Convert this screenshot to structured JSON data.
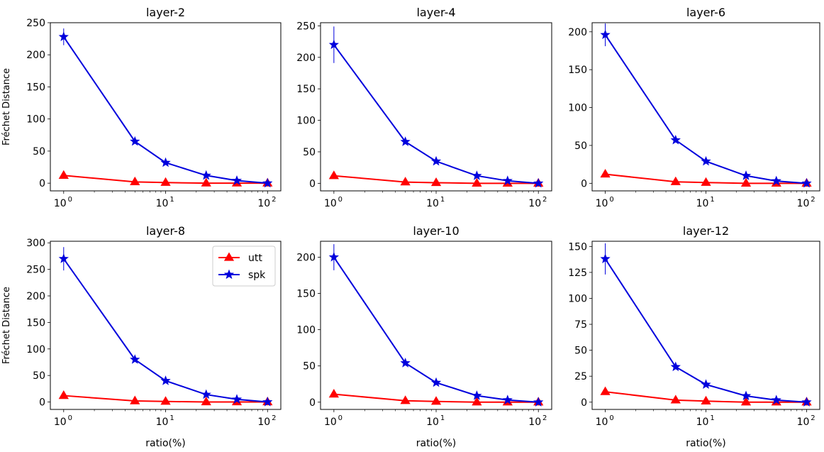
{
  "figure": {
    "colors": {
      "utt": "#ff0000",
      "spk": "#0000dd"
    }
  },
  "chart_data": [
    {
      "type": "line",
      "title": "layer-2",
      "x": [
        1,
        5,
        10,
        25,
        50,
        100
      ],
      "xscale": "log",
      "xlim": [
        0.74,
        135
      ],
      "xticks": [
        1,
        10,
        100
      ],
      "xticklabels": [
        "10",
        "10",
        "10"
      ],
      "xtick_exponents": [
        "0",
        "1",
        "2"
      ],
      "xlabel": "",
      "ylabel": "Fréchet Distance",
      "ylim": [
        -12,
        250
      ],
      "yticks": [
        0,
        50,
        100,
        150,
        200,
        250
      ],
      "series": [
        {
          "name": "utt",
          "marker": "triangle",
          "values": [
            12,
            2,
            1,
            0,
            0,
            0
          ],
          "err": [
            0,
            0,
            0,
            0,
            0,
            0
          ]
        },
        {
          "name": "spk",
          "marker": "star",
          "values": [
            228,
            65,
            32,
            12,
            4,
            0
          ],
          "err": [
            13,
            0,
            0,
            0,
            0,
            0
          ]
        }
      ]
    },
    {
      "type": "line",
      "title": "layer-4",
      "x": [
        1,
        5,
        10,
        25,
        50,
        100
      ],
      "xscale": "log",
      "xlim": [
        0.74,
        135
      ],
      "xticks": [
        1,
        10,
        100
      ],
      "xticklabels": [
        "10",
        "10",
        "10"
      ],
      "xtick_exponents": [
        "0",
        "1",
        "2"
      ],
      "xlabel": "",
      "ylabel": "",
      "ylim": [
        -12,
        255
      ],
      "yticks": [
        0,
        50,
        100,
        150,
        200,
        250
      ],
      "series": [
        {
          "name": "utt",
          "marker": "triangle",
          "values": [
            12,
            2,
            1,
            0,
            0,
            0
          ],
          "err": [
            0,
            0,
            0,
            0,
            0,
            0
          ]
        },
        {
          "name": "spk",
          "marker": "star",
          "values": [
            220,
            66,
            35,
            12,
            4,
            0
          ],
          "err": [
            29,
            0,
            0,
            0,
            0,
            0
          ]
        }
      ]
    },
    {
      "type": "line",
      "title": "layer-6",
      "x": [
        1,
        5,
        10,
        25,
        50,
        100
      ],
      "xscale": "log",
      "xlim": [
        0.74,
        135
      ],
      "xticks": [
        1,
        10,
        100
      ],
      "xticklabels": [
        "10",
        "10",
        "10"
      ],
      "xtick_exponents": [
        "0",
        "1",
        "2"
      ],
      "xlabel": "",
      "ylabel": "",
      "ylim": [
        -10,
        212
      ],
      "yticks": [
        0,
        50,
        100,
        150,
        200
      ],
      "series": [
        {
          "name": "utt",
          "marker": "triangle",
          "values": [
            12,
            2,
            1,
            0,
            0,
            0
          ],
          "err": [
            0,
            0,
            0,
            0,
            0,
            0
          ]
        },
        {
          "name": "spk",
          "marker": "star",
          "values": [
            196,
            57,
            29,
            10,
            3,
            0
          ],
          "err": [
            15,
            0,
            0,
            0,
            0,
            0
          ]
        }
      ]
    },
    {
      "type": "line",
      "title": "layer-8",
      "x": [
        1,
        5,
        10,
        25,
        50,
        100
      ],
      "xscale": "log",
      "xlim": [
        0.74,
        135
      ],
      "xticks": [
        1,
        10,
        100
      ],
      "xticklabels": [
        "10",
        "10",
        "10"
      ],
      "xtick_exponents": [
        "0",
        "1",
        "2"
      ],
      "xlabel": "ratio(%)",
      "ylabel": "Fréchet Distance",
      "ylim": [
        -14,
        303
      ],
      "yticks": [
        0,
        50,
        100,
        150,
        200,
        250,
        300
      ],
      "legend": {
        "location": "upper right",
        "entries": [
          "utt",
          "spk"
        ]
      },
      "series": [
        {
          "name": "utt",
          "marker": "triangle",
          "values": [
            12,
            2,
            1,
            0,
            0,
            0
          ],
          "err": [
            0,
            0,
            0,
            0,
            0,
            0
          ]
        },
        {
          "name": "spk",
          "marker": "star",
          "values": [
            270,
            80,
            40,
            14,
            5,
            0
          ],
          "err": [
            22,
            0,
            0,
            0,
            0,
            0
          ]
        }
      ]
    },
    {
      "type": "line",
      "title": "layer-10",
      "x": [
        1,
        5,
        10,
        25,
        50,
        100
      ],
      "xscale": "log",
      "xlim": [
        0.74,
        135
      ],
      "xticks": [
        1,
        10,
        100
      ],
      "xticklabels": [
        "10",
        "10",
        "10"
      ],
      "xtick_exponents": [
        "0",
        "1",
        "2"
      ],
      "xlabel": "ratio(%)",
      "ylabel": "",
      "ylim": [
        -10,
        222
      ],
      "yticks": [
        0,
        50,
        100,
        150,
        200
      ],
      "series": [
        {
          "name": "utt",
          "marker": "triangle",
          "values": [
            11,
            2,
            1,
            0,
            0,
            0
          ],
          "err": [
            0,
            0,
            0,
            0,
            0,
            0
          ]
        },
        {
          "name": "spk",
          "marker": "star",
          "values": [
            200,
            54,
            27,
            9,
            3,
            0
          ],
          "err": [
            18,
            0,
            0,
            0,
            0,
            0
          ]
        }
      ]
    },
    {
      "type": "line",
      "title": "layer-12",
      "x": [
        1,
        5,
        10,
        25,
        50,
        100
      ],
      "xscale": "log",
      "xlim": [
        0.74,
        135
      ],
      "xticks": [
        1,
        10,
        100
      ],
      "xticklabels": [
        "10",
        "10",
        "10"
      ],
      "xtick_exponents": [
        "0",
        "1",
        "2"
      ],
      "xlabel": "ratio(%)",
      "ylabel": "",
      "ylim": [
        -7,
        155
      ],
      "yticks": [
        0,
        25,
        50,
        75,
        100,
        125,
        150
      ],
      "series": [
        {
          "name": "utt",
          "marker": "triangle",
          "values": [
            10,
            2,
            1,
            0,
            0,
            0
          ],
          "err": [
            0,
            0,
            0,
            0,
            0,
            0
          ]
        },
        {
          "name": "spk",
          "marker": "star",
          "values": [
            138,
            34,
            17,
            6,
            2,
            0
          ],
          "err": [
            15,
            0,
            0,
            0,
            0,
            0
          ]
        }
      ]
    }
  ]
}
